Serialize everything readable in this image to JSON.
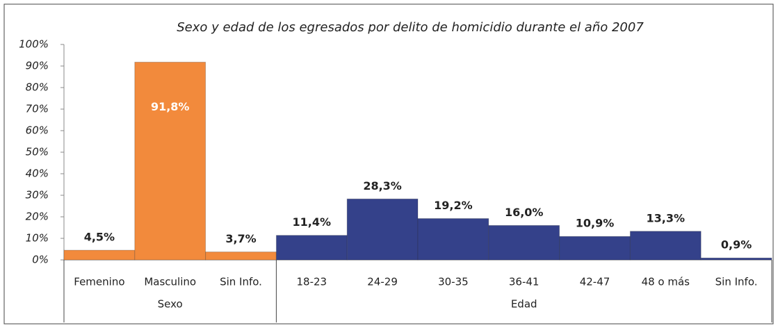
{
  "chart_data": {
    "type": "bar",
    "title": "Sexo y edad de los egresados por delito de homicidio durante el año 2007",
    "groups": [
      {
        "name": "Sexo",
        "color": "#f28a3c",
        "categories": [
          "Femenino",
          "Masculino",
          "Sin Info."
        ],
        "values": [
          4.5,
          91.8,
          3.7
        ],
        "value_labels": [
          "4,5%",
          "91,8%",
          "3,7%"
        ]
      },
      {
        "name": "Edad",
        "color": "#34418a",
        "categories": [
          "18-23",
          "24-29",
          "30-35",
          "36-41",
          "42-47",
          "48 o más",
          "Sin Info."
        ],
        "values": [
          11.4,
          28.3,
          19.2,
          16.0,
          10.9,
          13.3,
          0.9
        ],
        "value_labels": [
          "11,4%",
          "28,3%",
          "19,2%",
          "16,0%",
          "10,9%",
          "13,3%",
          "0,9%"
        ]
      }
    ],
    "ylim": [
      0,
      100
    ],
    "yticks": [
      {
        "value": 0,
        "label": "0%"
      },
      {
        "value": 10,
        "label": "10%"
      },
      {
        "value": 20,
        "label": "20%"
      },
      {
        "value": 30,
        "label": "30%"
      },
      {
        "value": 40,
        "label": "40%"
      },
      {
        "value": 50,
        "label": "50%"
      },
      {
        "value": 60,
        "label": "60%"
      },
      {
        "value": 70,
        "label": "70%"
      },
      {
        "value": 80,
        "label": "80%"
      },
      {
        "value": 90,
        "label": "90%"
      },
      {
        "value": 100,
        "label": "100%"
      }
    ]
  }
}
